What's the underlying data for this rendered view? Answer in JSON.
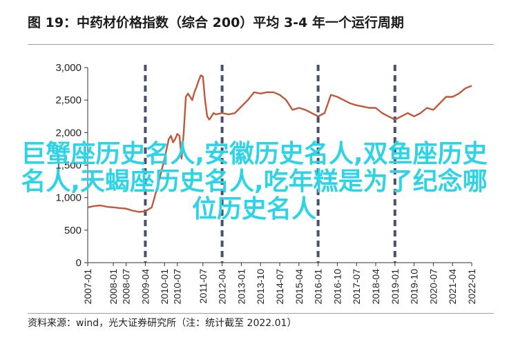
{
  "title": "图 19：中药材价格指数（综合 200）平均 3-4 年一个运行周期",
  "source": "资料来源：wind，光大证券研究所（注：统计截至 2022.01）",
  "overlay_text": "巨蟹座历史名人,安徽历史名人,双鱼座历史名人,天蝎座历史名人,吃年糕是为了纪念哪位历史名人",
  "colors": {
    "line": "#c0573a",
    "dash": "#4a4f6e",
    "overlay": "#2fd3e6"
  },
  "chart_data": {
    "type": "line",
    "title": "",
    "xlabel": "",
    "ylabel": "",
    "ylim": [
      0,
      3000
    ],
    "yticks": [
      "0",
      "500",
      "1,000",
      "1,500",
      "2,000",
      "2,500",
      "3,000"
    ],
    "xticks": [
      "2007-01",
      "2008-01",
      "2008-07",
      "2009-04",
      "2010-01",
      "2010-07",
      "2011-07",
      "2012-04",
      "2013-01",
      "2013-10",
      "2014-07",
      "2015-04",
      "2016-01",
      "2016-10",
      "2017-07",
      "2018-04",
      "2019-01",
      "2019-10",
      "2020-07",
      "2021-04",
      "2022-01"
    ],
    "cycle_markers": [
      "2009-04",
      "2012-04",
      "2016-01",
      "2019-01"
    ],
    "series": [
      {
        "points": [
          [
            "2007-01",
            850
          ],
          [
            "2007-04",
            870
          ],
          [
            "2007-07",
            880
          ],
          [
            "2007-10",
            860
          ],
          [
            "2008-01",
            850
          ],
          [
            "2008-04",
            840
          ],
          [
            "2008-07",
            830
          ],
          [
            "2008-10",
            800
          ],
          [
            "2009-01",
            780
          ],
          [
            "2009-04",
            790
          ],
          [
            "2009-07",
            850
          ],
          [
            "2009-10",
            1200
          ],
          [
            "2010-01",
            1600
          ],
          [
            "2010-03",
            1900
          ],
          [
            "2010-04",
            1950
          ],
          [
            "2010-05",
            1850
          ],
          [
            "2010-06",
            1900
          ],
          [
            "2010-07",
            1980
          ],
          [
            "2010-08",
            1950
          ],
          [
            "2010-09",
            1600
          ],
          [
            "2010-10",
            2000
          ],
          [
            "2010-11",
            2550
          ],
          [
            "2010-12",
            2600
          ],
          [
            "2011-01",
            2550
          ],
          [
            "2011-02",
            2500
          ],
          [
            "2011-03",
            2620
          ],
          [
            "2011-04",
            2700
          ],
          [
            "2011-05",
            2800
          ],
          [
            "2011-06",
            2880
          ],
          [
            "2011-07",
            2860
          ],
          [
            "2011-08",
            2500
          ],
          [
            "2011-09",
            2250
          ],
          [
            "2011-10",
            2200
          ],
          [
            "2011-11",
            2250
          ],
          [
            "2011-12",
            2300
          ],
          [
            "2012-01",
            2280
          ],
          [
            "2012-04",
            2300
          ],
          [
            "2012-07",
            2280
          ],
          [
            "2012-10",
            2300
          ],
          [
            "2013-01",
            2400
          ],
          [
            "2013-04",
            2500
          ],
          [
            "2013-07",
            2620
          ],
          [
            "2013-10",
            2600
          ],
          [
            "2014-01",
            2620
          ],
          [
            "2014-04",
            2620
          ],
          [
            "2014-07",
            2580
          ],
          [
            "2014-10",
            2500
          ],
          [
            "2015-01",
            2350
          ],
          [
            "2015-04",
            2380
          ],
          [
            "2015-07",
            2350
          ],
          [
            "2015-10",
            2300
          ],
          [
            "2016-01",
            2250
          ],
          [
            "2016-04",
            2300
          ],
          [
            "2016-07",
            2580
          ],
          [
            "2016-10",
            2550
          ],
          [
            "2017-01",
            2500
          ],
          [
            "2017-04",
            2450
          ],
          [
            "2017-07",
            2420
          ],
          [
            "2017-10",
            2400
          ],
          [
            "2018-01",
            2380
          ],
          [
            "2018-04",
            2380
          ],
          [
            "2018-07",
            2300
          ],
          [
            "2018-10",
            2250
          ],
          [
            "2019-01",
            2200
          ],
          [
            "2019-04",
            2250
          ],
          [
            "2019-07",
            2300
          ],
          [
            "2019-10",
            2250
          ],
          [
            "2020-01",
            2300
          ],
          [
            "2020-04",
            2380
          ],
          [
            "2020-07",
            2350
          ],
          [
            "2020-10",
            2450
          ],
          [
            "2021-01",
            2550
          ],
          [
            "2021-04",
            2550
          ],
          [
            "2021-07",
            2600
          ],
          [
            "2021-10",
            2680
          ],
          [
            "2022-01",
            2720
          ]
        ]
      }
    ]
  }
}
